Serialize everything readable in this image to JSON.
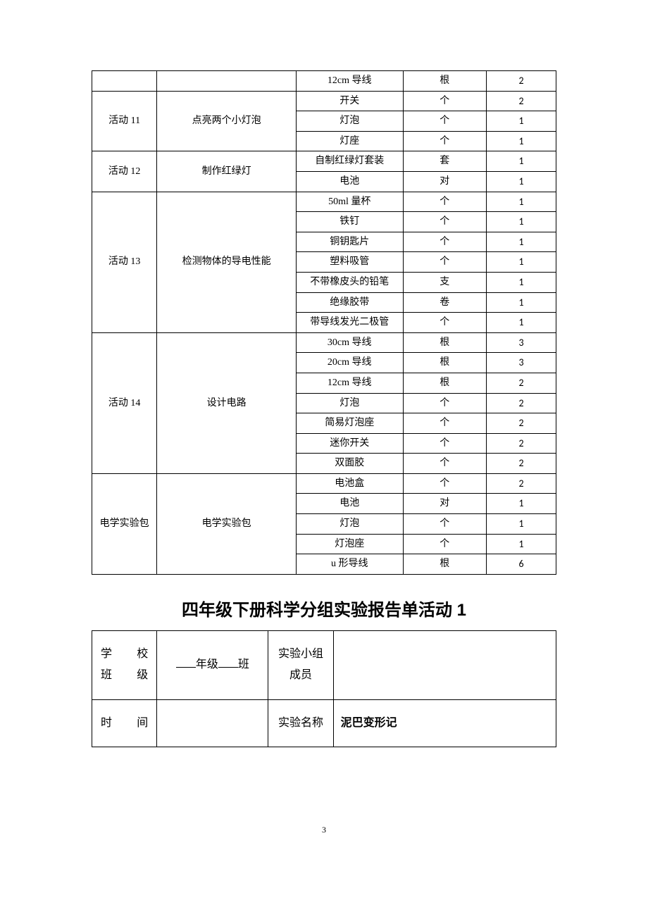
{
  "table1": {
    "blocks": [
      {
        "a": "",
        "b": "",
        "items": [
          {
            "c": "12cm 导线",
            "d": "根",
            "e": "2"
          }
        ]
      },
      {
        "a": "活动 11",
        "b": "点亮两个小灯泡",
        "items": [
          {
            "c": "开关",
            "d": "个",
            "e": "2"
          },
          {
            "c": "灯泡",
            "d": "个",
            "e": "1"
          },
          {
            "c": "灯座",
            "d": "个",
            "e": "1"
          }
        ]
      },
      {
        "a": "活动 12",
        "b": "制作红绿灯",
        "items": [
          {
            "c": "自制红绿灯套装",
            "d": "套",
            "e": "1"
          },
          {
            "c": "电池",
            "d": "对",
            "e": "1"
          }
        ]
      },
      {
        "a": "活动 13",
        "b": "检测物体的导电性能",
        "items": [
          {
            "c": "50ml 量杯",
            "d": "个",
            "e": "1"
          },
          {
            "c": "铁钉",
            "d": "个",
            "e": "1"
          },
          {
            "c": "铜钥匙片",
            "d": "个",
            "e": "1"
          },
          {
            "c": "塑料吸管",
            "d": "个",
            "e": "1"
          },
          {
            "c": "不带橡皮头的铅笔",
            "d": "支",
            "e": "1"
          },
          {
            "c": "绝缘胶带",
            "d": "卷",
            "e": "1"
          },
          {
            "c": "带导线发光二极管",
            "d": "个",
            "e": "1"
          }
        ]
      },
      {
        "a": "活动 14",
        "b": "设计电路",
        "items": [
          {
            "c": "30cm 导线",
            "d": "根",
            "e": "3"
          },
          {
            "c": "20cm 导线",
            "d": "根",
            "e": "3"
          },
          {
            "c": "12cm 导线",
            "d": "根",
            "e": "2"
          },
          {
            "c": "灯泡",
            "d": "个",
            "e": "2"
          },
          {
            "c": "简易灯泡座",
            "d": "个",
            "e": "2"
          },
          {
            "c": "迷你开关",
            "d": "个",
            "e": "2"
          },
          {
            "c": "双面胶",
            "d": "个",
            "e": "2"
          }
        ]
      },
      {
        "a": "电学实验包",
        "b": "电学实验包",
        "items": [
          {
            "c": "电池盒",
            "d": "个",
            "e": "2"
          },
          {
            "c": "电池",
            "d": "对",
            "e": "1"
          },
          {
            "c": "灯泡",
            "d": "个",
            "e": "1"
          },
          {
            "c": "灯泡座",
            "d": "个",
            "e": "1"
          },
          {
            "c": "u 形导线",
            "d": "根",
            "e": "6"
          }
        ]
      }
    ]
  },
  "section_title": "四年级下册科学分组实验报告单活动 1",
  "table2": {
    "r1_lbl1_a": "学",
    "r1_lbl1_b": "校",
    "r1_lbl2_a": "班",
    "r1_lbl2_b": "级",
    "r1_val1_mid": "年级",
    "r1_val1_end": "班",
    "r1_lbl3": "实验小组成员",
    "r2_lbl1_a": "时",
    "r2_lbl1_b": "间",
    "r2_lbl2": "实验名称",
    "r2_val2": "泥巴变形记"
  },
  "page_number": "3"
}
